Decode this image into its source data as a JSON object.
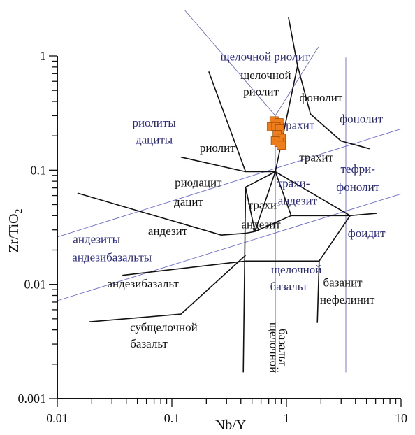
{
  "chart_data": {
    "type": "scatter",
    "title": "",
    "xlabel": "Nb/Y",
    "ylabel": "Zr/TiO2",
    "x_scale": "log",
    "y_scale": "log",
    "xlim": [
      0.01,
      10
    ],
    "ylim": [
      0.001,
      1
    ],
    "x_ticks": [
      "0.01",
      "0.1",
      "1",
      "10"
    ],
    "y_ticks": [
      "0.001",
      "0.01",
      "0.1",
      "1"
    ],
    "grid": false,
    "colors": {
      "boundary_lines": "#111111",
      "reference_lines": "#6a6ac8",
      "points": "#ee7d1a",
      "point_edge": "#a04a00",
      "label_dark": "#111111",
      "label_blue": "#2a2a80"
    },
    "series": [
      {
        "marker": "square",
        "points": [
          {
            "x": 0.78,
            "y": 0.27
          },
          {
            "x": 0.86,
            "y": 0.26
          },
          {
            "x": 0.74,
            "y": 0.24
          },
          {
            "x": 0.81,
            "y": 0.24
          },
          {
            "x": 0.87,
            "y": 0.23
          },
          {
            "x": 0.83,
            "y": 0.205
          },
          {
            "x": 0.9,
            "y": 0.19
          },
          {
            "x": 0.8,
            "y": 0.18
          },
          {
            "x": 0.86,
            "y": 0.175
          },
          {
            "x": 0.9,
            "y": 0.165
          }
        ]
      }
    ],
    "field_boundaries": [
      [
        [
          0.21,
          0.73
        ],
        [
          0.44,
          0.097
        ],
        [
          0.8,
          0.097
        ],
        [
          1.25,
          0.82
        ],
        [
          1.04,
          2.2
        ]
      ],
      [
        [
          0.12,
          0.13
        ],
        [
          0.44,
          0.097
        ]
      ],
      [
        [
          0.8,
          0.097
        ],
        [
          0.44,
          0.071
        ],
        [
          0.42,
          0.0017
        ]
      ],
      [
        [
          0.015,
          0.063
        ],
        [
          0.27,
          0.027
        ],
        [
          0.44,
          0.028
        ],
        [
          0.53,
          0.029
        ]
      ],
      [
        [
          0.53,
          0.029
        ],
        [
          1.1,
          0.04
        ],
        [
          0.8,
          0.097
        ]
      ],
      [
        [
          0.53,
          0.029
        ],
        [
          0.8,
          0.097
        ]
      ],
      [
        [
          0.53,
          0.029
        ],
        [
          0.44,
          0.071
        ]
      ],
      [
        [
          0.037,
          0.012
        ],
        [
          0.44,
          0.016
        ]
      ],
      [
        [
          0.019,
          0.0047
        ],
        [
          0.12,
          0.0055
        ],
        [
          0.44,
          0.018
        ]
      ],
      [
        [
          0.44,
          0.016
        ],
        [
          1.93,
          0.016
        ],
        [
          3.6,
          0.04
        ]
      ],
      [
        [
          1.93,
          0.016
        ],
        [
          1.86,
          0.0046
        ]
      ],
      [
        [
          1.1,
          0.04
        ],
        [
          3.6,
          0.04
        ]
      ],
      [
        [
          3.6,
          0.04
        ],
        [
          6.2,
          0.042
        ]
      ],
      [
        [
          0.8,
          0.097
        ],
        [
          3.6,
          0.04
        ]
      ],
      [
        [
          1.25,
          0.82
        ],
        [
          1.62,
          0.31
        ],
        [
          3.0,
          0.18
        ],
        [
          5.3,
          0.154
        ]
      ]
    ],
    "reference_lines": [
      [
        [
          0.13,
          2.5
        ],
        [
          0.8,
          0.3
        ]
      ],
      [
        [
          0.8,
          0.3
        ],
        [
          1.9,
          1.2
        ]
      ],
      [
        [
          0.01,
          0.026
        ],
        [
          10,
          0.23
        ]
      ],
      [
        [
          0.01,
          0.0072
        ],
        [
          10,
          0.062
        ]
      ],
      [
        [
          0.8,
          0.3
        ],
        [
          0.8,
          0.0017
        ]
      ],
      [
        [
          3.3,
          0.97
        ],
        [
          3.3,
          0.0017
        ]
      ]
    ],
    "field_labels_dark": [
      {
        "text": "щелочной",
        "x": 0.66,
        "y": 0.63
      },
      {
        "text": "риолит",
        "x": 0.6,
        "y": 0.45
      },
      {
        "text": "фонолит",
        "x": 2.0,
        "y": 0.4
      },
      {
        "text": "трахит",
        "x": 1.82,
        "y": 0.12
      },
      {
        "text": "риолит",
        "x": 0.25,
        "y": 0.145
      },
      {
        "text": "риодацит",
        "x": 0.17,
        "y": 0.072
      },
      {
        "text": "дацит",
        "x": 0.14,
        "y": 0.049
      },
      {
        "text": "трахи-",
        "x": 0.64,
        "y": 0.046
      },
      {
        "text": "андезит",
        "x": 0.6,
        "y": 0.031
      },
      {
        "text": "андезит",
        "x": 0.092,
        "y": 0.027
      },
      {
        "text": "андезибазальт",
        "x": 0.056,
        "y": 0.0094
      },
      {
        "text": "субщелочной",
        "x": 0.085,
        "y": 0.0039
      },
      {
        "text": "базальт",
        "x": 0.063,
        "y": 0.0028
      },
      {
        "text": "базанит",
        "x": 3.1,
        "y": 0.0096
      },
      {
        "text": "нефелинит",
        "x": 3.4,
        "y": 0.0068
      },
      {
        "text": "щелочной",
        "x": 0.72,
        "y": 0.0028,
        "rotated": true
      },
      {
        "text": "базальт",
        "x": 0.86,
        "y": 0.0028,
        "rotated": true
      }
    ],
    "field_labels_blue": [
      {
        "text": "щелочной риолит",
        "x": 0.65,
        "y": 0.91
      },
      {
        "text": "риолиты",
        "x": 0.07,
        "y": 0.24
      },
      {
        "text": "дациты",
        "x": 0.07,
        "y": 0.17
      },
      {
        "text": "трахит",
        "x": 1.25,
        "y": 0.23
      },
      {
        "text": "фонолит",
        "x": 4.5,
        "y": 0.26
      },
      {
        "text": "тефри-",
        "x": 4.2,
        "y": 0.095
      },
      {
        "text": "фонолит",
        "x": 4.2,
        "y": 0.066
      },
      {
        "text": "трахи-",
        "x": 1.15,
        "y": 0.071
      },
      {
        "text": "андезит",
        "x": 1.25,
        "y": 0.05
      },
      {
        "text": "фоидит",
        "x": 5.0,
        "y": 0.026
      },
      {
        "text": "андезиты",
        "x": 0.022,
        "y": 0.023
      },
      {
        "text": "андезибазальты",
        "x": 0.03,
        "y": 0.016
      },
      {
        "text": "щелочной",
        "x": 1.22,
        "y": 0.0125
      },
      {
        "text": "базальт",
        "x": 1.05,
        "y": 0.0089
      }
    ]
  }
}
